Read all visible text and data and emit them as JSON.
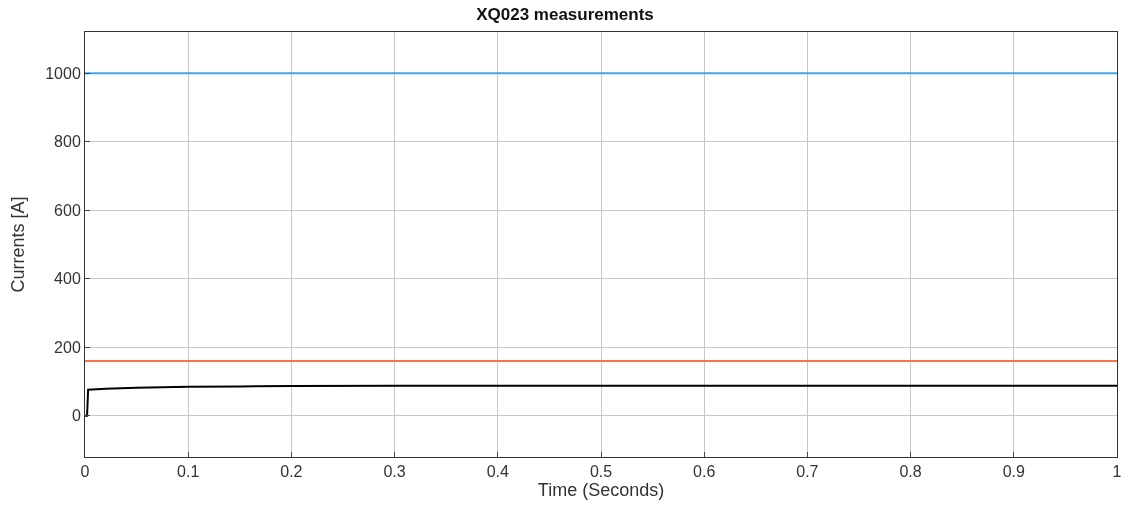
{
  "chart_data": {
    "type": "line",
    "title": "XQ023 measurements",
    "xlabel": "Time (Seconds)",
    "ylabel": "Currents [A]",
    "series": [
      {
        "color": "#3ea7ef",
        "x": [
          0,
          1
        ],
        "values": [
          1000,
          1000
        ]
      },
      {
        "color": "#f7754a",
        "x": [
          0,
          1
        ],
        "values": [
          160,
          160
        ]
      },
      {
        "color": "#000000",
        "x": [
          0,
          0.002,
          0.003,
          0.02,
          0.05,
          0.1,
          0.15,
          0.2,
          0.3,
          0.4,
          0.6,
          0.8,
          1
        ],
        "values": [
          0,
          0,
          76,
          79,
          82,
          85,
          86,
          87,
          88,
          88,
          88,
          88,
          88
        ]
      }
    ],
    "xlim": [
      0,
      1
    ],
    "xticks": [
      0,
      0.1,
      0.2,
      0.3,
      0.4,
      0.5,
      0.6,
      0.7,
      0.8,
      0.9,
      1
    ],
    "ylim": [
      -120,
      1120
    ],
    "yticks": [
      0,
      200,
      400,
      600,
      800,
      1000
    ],
    "grid": true,
    "marker": "none",
    "line_style": "solid"
  }
}
